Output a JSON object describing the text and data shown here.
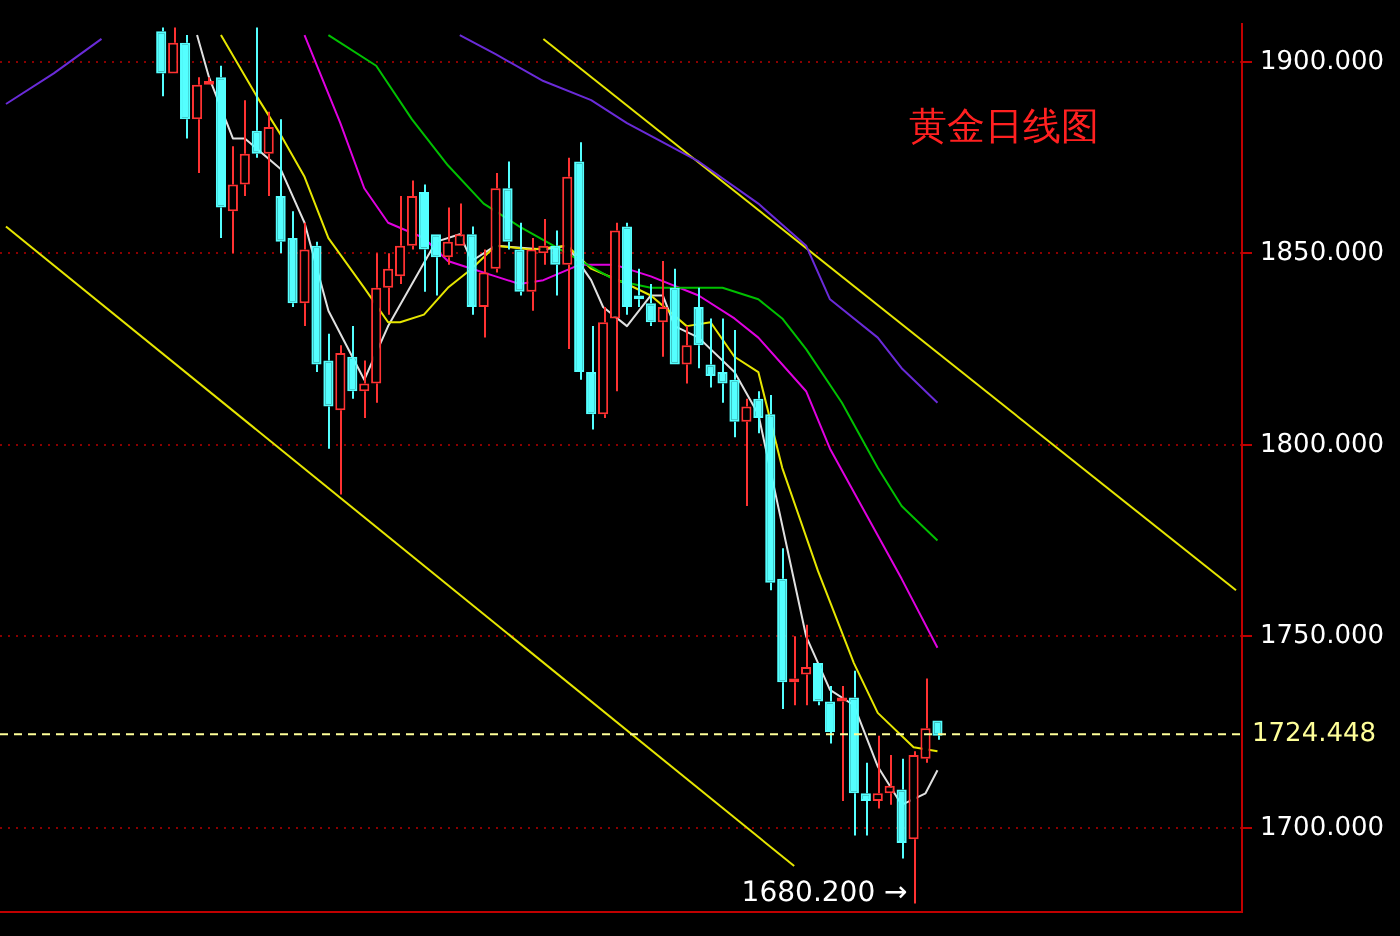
{
  "chart_data": {
    "type": "candlestick",
    "title": "黄金日线图",
    "categories": [
      null,
      null,
      null,
      null,
      null,
      null,
      null,
      null,
      null,
      null,
      null,
      null,
      null,
      null,
      null,
      null,
      null,
      null,
      null,
      null,
      null,
      null,
      null,
      null,
      null,
      null,
      null,
      null,
      null,
      null,
      null,
      null,
      null,
      null,
      null,
      null,
      null,
      null,
      null,
      null,
      null,
      null,
      null,
      null,
      null,
      null,
      null,
      null,
      null,
      null,
      null,
      null,
      null,
      null,
      null,
      null,
      null,
      null,
      null,
      null,
      null,
      null,
      null,
      null,
      null,
      null,
      null,
      null,
      null,
      null,
      null,
      null,
      null,
      null,
      null,
      null,
      null,
      null,
      null,
      null,
      null,
      null,
      null,
      null,
      null,
      null,
      null,
      null,
      null,
      null,
      null,
      null,
      null,
      null,
      null,
      null,
      null,
      null,
      null,
      null,
      null,
      null,
      null,
      null
    ],
    "series": [
      {
        "type": "line",
        "color": "#6a2bd8",
        "values": [
          1889,
          null,
          null,
          null,
          1897,
          null,
          null,
          null,
          1906,
          null,
          null,
          null,
          null,
          null,
          null,
          null,
          null,
          null,
          null,
          null,
          null,
          null,
          null,
          null,
          null,
          null,
          null,
          null,
          null,
          null,
          null,
          null,
          null,
          null,
          null,
          null,
          null,
          null,
          null,
          null,
          null,
          null,
          null,
          null,
          null,
          null,
          null,
          null,
          null,
          null,
          null,
          null,
          null,
          null,
          null,
          null,
          null,
          null,
          null,
          null,
          null,
          null,
          null,
          null,
          null,
          null,
          null,
          null,
          null,
          null,
          null,
          null,
          null,
          null,
          null,
          null,
          null,
          null,
          null,
          null,
          null,
          null,
          null,
          null,
          null,
          null,
          null,
          null,
          null,
          null,
          null,
          null,
          null,
          null,
          null,
          null,
          null,
          null,
          null,
          null,
          null,
          null,
          null,
          null
        ]
      },
      {
        "type": "line",
        "color": "#6a2bd8",
        "values": [
          null,
          null,
          null,
          null,
          null,
          null,
          null,
          null,
          null,
          null,
          null,
          null,
          null,
          null,
          null,
          null,
          null,
          null,
          null,
          null,
          null,
          null,
          null,
          null,
          null,
          null,
          null,
          null,
          null,
          null,
          null,
          null,
          null,
          null,
          null,
          null,
          null,
          null,
          1907,
          null,
          null,
          1902,
          null,
          null,
          null,
          1895,
          null,
          null,
          null,
          1890,
          null,
          null,
          1884,
          null,
          null,
          null,
          null,
          null,
          1874,
          null,
          null,
          null,
          null,
          1863,
          null,
          null,
          null,
          1852,
          null,
          1838,
          null,
          null,
          null,
          1828,
          null,
          1820,
          null,
          null,
          1811,
          null,
          null,
          null,
          null,
          null,
          null,
          null,
          null,
          null,
          null,
          null,
          null,
          null,
          null,
          null,
          null,
          null,
          null,
          null,
          null,
          null,
          null,
          null,
          null,
          null
        ]
      },
      {
        "type": "line",
        "color": "#00c000",
        "values": [
          null,
          null,
          null,
          null,
          null,
          null,
          null,
          null,
          null,
          null,
          null,
          null,
          null,
          null,
          null,
          null,
          null,
          null,
          null,
          null,
          null,
          null,
          null,
          null,
          null,
          null,
          null,
          1907,
          null,
          null,
          null,
          1899,
          null,
          null,
          1885,
          null,
          null,
          1873,
          null,
          null,
          1863,
          null,
          null,
          1857,
          null,
          null,
          null,
          1850,
          null,
          null,
          null,
          1843,
          null,
          null,
          1841,
          null,
          null,
          1841,
          null,
          null,
          1841,
          null,
          null,
          1838,
          null,
          1833,
          null,
          1825,
          null,
          null,
          1811,
          null,
          null,
          1794,
          null,
          1784,
          null,
          null,
          1775,
          null,
          null,
          null,
          null,
          null,
          null,
          null,
          null,
          null,
          null,
          null,
          null,
          null,
          null,
          null,
          null,
          null,
          null,
          null,
          null,
          null,
          null,
          null,
          null,
          null
        ]
      },
      {
        "type": "line",
        "color": "#e000e0",
        "values": [
          null,
          null,
          null,
          null,
          null,
          null,
          null,
          null,
          null,
          null,
          null,
          null,
          null,
          null,
          null,
          null,
          null,
          null,
          null,
          null,
          null,
          null,
          null,
          null,
          null,
          1907,
          null,
          null,
          1884,
          null,
          1867,
          null,
          1858,
          null,
          null,
          1854,
          null,
          1848,
          null,
          1846,
          null,
          1844,
          null,
          1842,
          null,
          1843,
          null,
          null,
          1847,
          null,
          null,
          1847,
          null,
          null,
          1844,
          null,
          null,
          null,
          1839,
          null,
          null,
          1833,
          null,
          1828,
          null,
          null,
          null,
          1814,
          null,
          1799,
          null,
          null,
          1782,
          null,
          null,
          1765,
          null,
          null,
          1747,
          null,
          null,
          null,
          null,
          null,
          null,
          null,
          null,
          null,
          null,
          null,
          null,
          null,
          null,
          null,
          null,
          null,
          null,
          null,
          null,
          null,
          null,
          null,
          null,
          null
        ]
      },
      {
        "type": "line",
        "color": "#e6e600",
        "values": [
          null,
          null,
          null,
          null,
          null,
          null,
          null,
          null,
          null,
          null,
          null,
          null,
          null,
          null,
          null,
          null,
          null,
          null,
          1907,
          null,
          null,
          1891,
          null,
          1881,
          null,
          1870,
          null,
          1854,
          null,
          null,
          1841,
          null,
          1832,
          1832,
          null,
          1834,
          null,
          1841,
          null,
          1846,
          null,
          1852,
          null,
          null,
          1851,
          null,
          null,
          1852,
          null,
          1846,
          null,
          null,
          1842,
          null,
          1839,
          null,
          null,
          1831,
          null,
          1832,
          null,
          1823,
          null,
          1819,
          null,
          1794,
          null,
          null,
          1767,
          null,
          null,
          1743,
          null,
          1730,
          null,
          null,
          1721,
          null,
          1720,
          null,
          null,
          null,
          null,
          null,
          null,
          null,
          null,
          null,
          null,
          null,
          null,
          null,
          null,
          null,
          null,
          null,
          null,
          null,
          null,
          null,
          null,
          null,
          null,
          null
        ]
      },
      {
        "type": "line",
        "color": "#e0e0e0",
        "values": [
          null,
          null,
          null,
          null,
          null,
          null,
          null,
          null,
          null,
          null,
          null,
          null,
          null,
          null,
          null,
          null,
          1907,
          1896,
          null,
          1880,
          1880,
          null,
          null,
          1872,
          null,
          1858,
          null,
          1835,
          null,
          null,
          1817,
          null,
          1831,
          null,
          null,
          null,
          1853,
          null,
          1855,
          1848,
          null,
          1852,
          null,
          null,
          null,
          1851,
          null,
          1852,
          null,
          1843,
          1836,
          null,
          1831,
          null,
          1839,
          1839,
          1831,
          null,
          1828,
          null,
          null,
          1819,
          null,
          1808,
          null,
          1779,
          null,
          1750,
          null,
          1736,
          null,
          1732,
          null,
          1716,
          null,
          1706,
          null,
          1709,
          1715,
          null,
          null,
          null,
          null,
          null,
          null,
          null,
          null,
          null,
          null,
          null,
          null,
          null,
          null,
          null,
          null,
          null,
          null,
          null,
          null,
          null,
          null,
          null,
          null,
          null
        ]
      },
      {
        "type": "line",
        "color": "#e6e600",
        "values": [
          1857,
          null,
          null,
          null,
          null,
          null,
          null,
          null,
          null,
          null,
          null,
          null,
          null,
          null,
          null,
          null,
          null,
          null,
          null,
          null,
          null,
          null,
          null,
          null,
          null,
          null,
          null,
          null,
          null,
          null,
          null,
          null,
          null,
          null,
          null,
          null,
          null,
          null,
          null,
          null,
          null,
          null,
          null,
          null,
          null,
          null,
          null,
          null,
          null,
          null,
          null,
          null,
          null,
          null,
          null,
          null,
          null,
          null,
          null,
          null,
          null,
          null,
          null,
          null,
          null,
          null,
          1690,
          null,
          null,
          null,
          null,
          null,
          null,
          null,
          null,
          null,
          null,
          null,
          null,
          null,
          null,
          null,
          null,
          null,
          null,
          null,
          null,
          null,
          null,
          null,
          null,
          null,
          null,
          null,
          null,
          null,
          null,
          null,
          null,
          null,
          null,
          null,
          null,
          null
        ]
      },
      {
        "type": "line",
        "color": "#e6e600",
        "values": [
          null,
          null,
          null,
          null,
          null,
          null,
          null,
          null,
          null,
          null,
          null,
          null,
          null,
          null,
          null,
          null,
          null,
          null,
          null,
          null,
          null,
          null,
          null,
          null,
          null,
          null,
          null,
          null,
          null,
          null,
          null,
          null,
          null,
          null,
          null,
          null,
          null,
          null,
          null,
          null,
          null,
          null,
          null,
          null,
          null,
          1906,
          null,
          null,
          null,
          null,
          null,
          null,
          null,
          null,
          null,
          null,
          null,
          null,
          null,
          null,
          null,
          null,
          null,
          null,
          null,
          null,
          null,
          null,
          null,
          null,
          null,
          null,
          null,
          null,
          null,
          null,
          null,
          null,
          null,
          null,
          null,
          null,
          null,
          null,
          null,
          null,
          null,
          null,
          null,
          null,
          null,
          null,
          null,
          null,
          null,
          null,
          null,
          null,
          null,
          null,
          null,
          null,
          null,
          1762
        ]
      },
      {
        "type": "candlestick",
        "ohlc": [
          null,
          null,
          null,
          null,
          null,
          null,
          null,
          null,
          null,
          null,
          null,
          null,
          null,
          [
            1908,
            1909,
            1891,
            1897
          ],
          [
            1897,
            1909,
            1897,
            1905
          ],
          [
            1905,
            1907,
            1880,
            1885
          ],
          [
            1885,
            1896,
            1871,
            1894
          ],
          [
            1894,
            1896,
            1894,
            1895
          ],
          [
            1896,
            1899,
            1854,
            1862
          ],
          [
            1861,
            1878,
            1850,
            1868
          ],
          [
            1868,
            1890,
            1865,
            1876
          ],
          [
            1882,
            1909,
            1875,
            1876
          ],
          [
            1876,
            1887,
            1865,
            1883
          ],
          [
            1865,
            1885,
            1850,
            1853
          ],
          [
            1854,
            1861,
            1836,
            1837
          ],
          [
            1837,
            1858,
            1831,
            1851
          ],
          [
            1852,
            1853,
            1819,
            1821
          ],
          [
            1822,
            1829,
            1799,
            1810
          ],
          [
            1809,
            1826,
            1787,
            1824
          ],
          [
            1823,
            1831,
            1812,
            1814
          ],
          [
            1814,
            1822,
            1807,
            1816
          ],
          [
            1816,
            1850,
            1811,
            1841
          ],
          [
            1841,
            1850,
            1834,
            1846
          ],
          [
            1844,
            1865,
            1842,
            1852
          ],
          [
            1852,
            1869,
            1851,
            1865
          ],
          [
            1866,
            1868,
            1840,
            1851
          ],
          [
            1855,
            1855,
            1839,
            1849
          ],
          [
            1849,
            1862,
            1847,
            1853
          ],
          [
            1852,
            1863,
            1852,
            1855
          ],
          [
            1855,
            1857,
            1834,
            1836
          ],
          [
            1836,
            1851,
            1828,
            1845
          ],
          [
            1846,
            1871,
            1845,
            1867
          ],
          [
            1867,
            1874,
            1851,
            1853
          ],
          [
            1851,
            1858,
            1839,
            1840
          ],
          [
            1840,
            1854,
            1835,
            1851
          ],
          [
            1850,
            1859,
            1847,
            1852
          ],
          [
            1852,
            1856,
            1839,
            1847
          ],
          [
            1847,
            1875,
            1825,
            1870
          ],
          [
            1874,
            1879,
            1817,
            1819
          ],
          [
            1819,
            1831,
            1804,
            1808
          ],
          [
            1808,
            1836,
            1807,
            1832
          ],
          [
            1833,
            1858,
            1814,
            1856
          ],
          [
            1857,
            1858,
            1834,
            1836
          ],
          [
            1839,
            1846,
            1836,
            1838
          ],
          [
            1837,
            1842,
            1831,
            1832
          ],
          [
            1832,
            1848,
            1823,
            1836
          ],
          [
            1841,
            1846,
            1821,
            1821
          ],
          [
            1821,
            1831,
            1816,
            1826
          ],
          [
            1836,
            1841,
            1820,
            1826
          ],
          [
            1821,
            1833,
            1815,
            1818
          ],
          [
            1819,
            1833,
            1811,
            1816
          ],
          [
            1817,
            1830,
            1802,
            1806
          ],
          [
            1806,
            1812,
            1784,
            1810
          ],
          [
            1812,
            1814,
            1803,
            1807
          ],
          [
            1808,
            1813,
            1762,
            1764
          ],
          [
            1765,
            1773,
            1731,
            1738
          ],
          [
            1738,
            1750,
            1732,
            1739
          ],
          [
            1740,
            1753,
            1732,
            1742
          ],
          [
            1743,
            1743,
            1732,
            1733
          ],
          [
            1733,
            1737,
            1722,
            1725
          ],
          [
            1733,
            1737,
            1707,
            1734
          ],
          [
            1734,
            1741,
            1698,
            1709
          ],
          [
            1709,
            1717,
            1698,
            1707
          ],
          [
            1707,
            1724,
            1705,
            1709
          ],
          [
            1709,
            1719,
            1706,
            1711
          ],
          [
            1710,
            1718,
            1692,
            1696
          ],
          [
            1697,
            1720,
            1680.2,
            1719
          ],
          [
            1718,
            1739,
            1717,
            1726
          ],
          [
            1728,
            1728,
            1723,
            1724
          ],
          null,
          null,
          null,
          null,
          null,
          null,
          null,
          null,
          null,
          null,
          null,
          null,
          null,
          null,
          null,
          null,
          null,
          null,
          null,
          null,
          null,
          null,
          null,
          null,
          null
        ],
        "colors": [
          null,
          null,
          null,
          null,
          null,
          null,
          null,
          null,
          null,
          null,
          null,
          null,
          null,
          "#54ffff",
          "#ff3232",
          "#54ffff",
          "#ff3232",
          "#ff3232",
          "#54ffff",
          "#ff3232",
          "#ff3232",
          "#54ffff",
          "#ff3232",
          "#54ffff",
          "#54ffff",
          "#ff3232",
          "#54ffff",
          "#54ffff",
          "#ff3232",
          "#54ffff",
          "#ff3232",
          "#ff3232",
          "#ff3232",
          "#ff3232",
          "#ff3232",
          "#54ffff",
          "#54ffff",
          "#ff3232",
          "#ff3232",
          "#54ffff",
          "#ff3232",
          "#ff3232",
          "#54ffff",
          "#54ffff",
          "#ff3232",
          "#ff3232",
          "#54ffff",
          "#ff3232",
          "#54ffff",
          "#54ffff",
          "#ff3232",
          "#ff3232",
          "#54ffff",
          "#54ffff",
          "#54ffff",
          "#ff3232",
          "#54ffff",
          "#ff3232",
          "#54ffff",
          "#54ffff",
          "#54ffff",
          "#54ffff",
          "#ff3232",
          "#54ffff",
          "#54ffff",
          "#54ffff",
          "#ff3232",
          "#ff3232",
          "#54ffff",
          "#54ffff",
          "#ff3232",
          "#54ffff",
          "#54ffff",
          "#ff3232",
          "#ff3232",
          "#54ffff",
          "#ff3232",
          "#ff3232",
          "#54ffff",
          null,
          null,
          null,
          null,
          null,
          null,
          null,
          null,
          null,
          null,
          null,
          null,
          null,
          null,
          null,
          null,
          null,
          null,
          null,
          null,
          null,
          null,
          null,
          null,
          null
        ]
      }
    ],
    "ylim": [
      1678,
      1910
    ],
    "yticks": [
      {
        "value": 1700,
        "label": "1700.000"
      },
      {
        "value": 1750,
        "label": "1750.000"
      },
      {
        "value": 1800,
        "label": "1800.000"
      },
      {
        "value": 1850,
        "label": "1850.000"
      },
      {
        "value": 1900,
        "label": "1900.000"
      }
    ],
    "ref_lines": [
      {
        "axis": "y",
        "value": 1724.448,
        "label": "1724.448",
        "color": "#ffff99",
        "line_style": "dashed"
      }
    ],
    "annotations": [
      "1680.200 →"
    ],
    "grid": "y",
    "legend": false,
    "tick_labels": "y"
  }
}
